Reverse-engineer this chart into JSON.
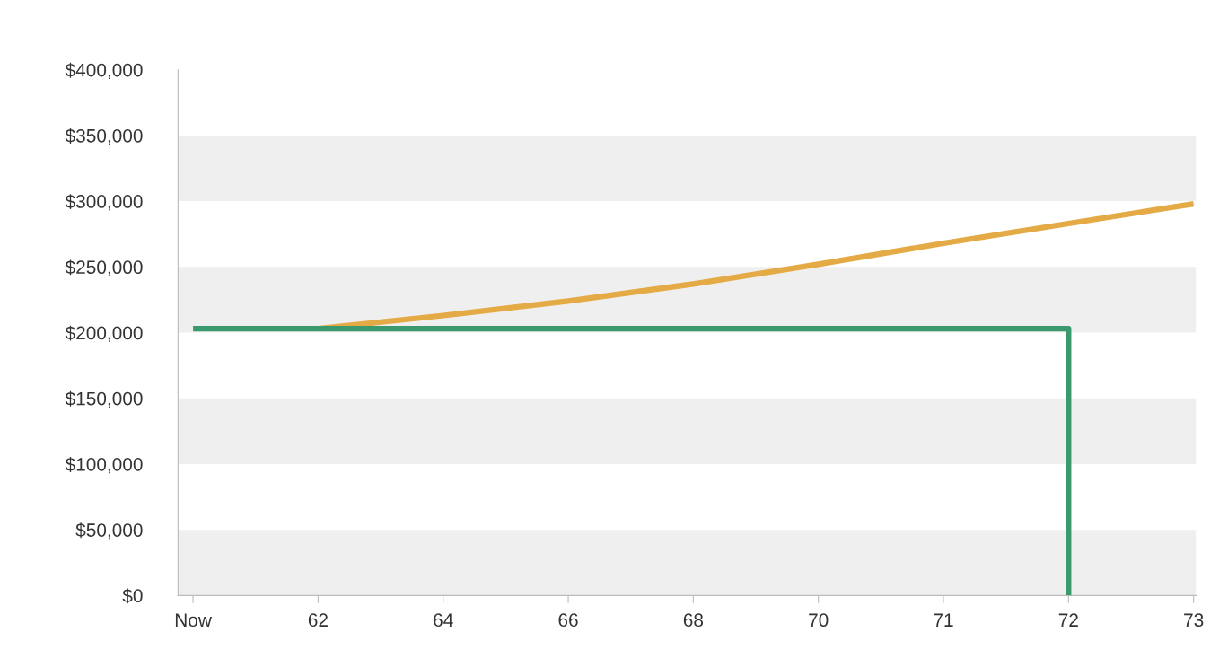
{
  "chart_data": {
    "type": "line",
    "categories": [
      "Now",
      "62",
      "64",
      "66",
      "68",
      "70",
      "71",
      "72",
      "73"
    ],
    "series": [
      {
        "color": "#e4aa45",
        "values": [
          null,
          203000,
          213000,
          224000,
          237000,
          252000,
          268000,
          283000,
          298000
        ]
      },
      {
        "color": "#3a9a6e",
        "x": [
          "Now",
          "62",
          "64",
          "66",
          "68",
          "70",
          "71",
          "72",
          "72"
        ],
        "values": [
          203000,
          203000,
          203000,
          203000,
          203000,
          203000,
          203000,
          203000,
          0
        ]
      }
    ],
    "ylim": [
      0,
      400000
    ],
    "yticks": [
      {
        "value": 0,
        "label": "$0"
      },
      {
        "value": 50000,
        "label": "$50,000"
      },
      {
        "value": 100000,
        "label": "$100,000"
      },
      {
        "value": 150000,
        "label": "$150,000"
      },
      {
        "value": 200000,
        "label": "$200,000"
      },
      {
        "value": 250000,
        "label": "$250,000"
      },
      {
        "value": 300000,
        "label": "$300,000"
      },
      {
        "value": 350000,
        "label": "$350,000"
      },
      {
        "value": 400000,
        "label": "$400,000"
      }
    ],
    "bands": [
      {
        "axis": "y",
        "from": 0,
        "to": 50000,
        "color": "#efefef"
      },
      {
        "axis": "y",
        "from": 100000,
        "to": 150000,
        "color": "#efefef"
      },
      {
        "axis": "y",
        "from": 200000,
        "to": 250000,
        "color": "#efefef"
      },
      {
        "axis": "y",
        "from": 300000,
        "to": 350000,
        "color": "#efefef"
      }
    ],
    "grid": false,
    "legend": false
  }
}
